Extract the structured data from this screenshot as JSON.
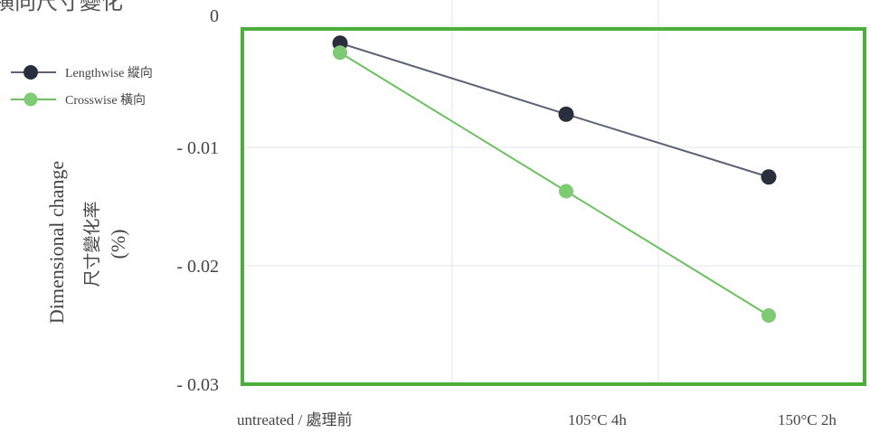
{
  "title_fragment": "横向尺寸變化",
  "legend": [
    {
      "label": "Lengthwise 縱向"
    },
    {
      "label": "Crosswise   橫向"
    }
  ],
  "colors": {
    "lengthwise": "#2a2f3d",
    "lengthwise_line": "#5c6275",
    "crosswise": "#7ecb74",
    "crosswise_line": "#6cc05f",
    "frame": "#4caf3c",
    "grid": "#e3e6ef"
  },
  "chart_data": {
    "type": "line",
    "categories": [
      "untreated  / 處理前",
      "105°C   4h",
      "150°C   2h"
    ],
    "series": [
      {
        "name": "Lengthwise 縱向",
        "values": [
          -0.0012,
          -0.0072,
          -0.0125
        ]
      },
      {
        "name": "Crosswise   橫向",
        "values": [
          -0.002,
          -0.0137,
          -0.0242
        ]
      }
    ],
    "yticks": [
      {
        "value": 0,
        "label": "0"
      },
      {
        "value": -0.01,
        "label": "- 0.01"
      },
      {
        "value": -0.02,
        "label": "- 0.02"
      },
      {
        "value": -0.03,
        "label": "- 0.03"
      }
    ],
    "ylim": [
      -0.03,
      0.0
    ],
    "ylabel": [
      "Dimensional change",
      "尺寸變化率",
      "(%)"
    ],
    "grid": true,
    "legend_position": "top-left"
  }
}
